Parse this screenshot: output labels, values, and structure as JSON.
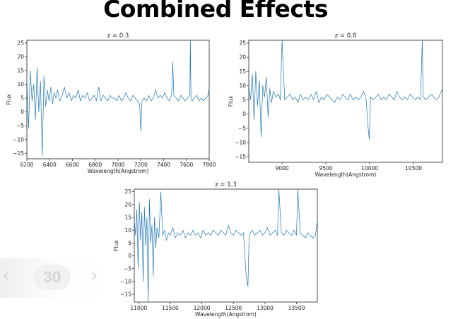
{
  "slide": {
    "title": "Combined Effects"
  },
  "pager": {
    "prev": "‹",
    "page": "30",
    "next": "›"
  },
  "colors": {
    "line": "#1f77b4"
  },
  "chart_data": [
    {
      "type": "line",
      "title": "z = 0.3",
      "xlabel": "Wavelength(Angstrom)",
      "ylabel": "Flux",
      "xlim": [
        6200,
        7800
      ],
      "ylim": [
        -17,
        26
      ],
      "xticks": [
        6200,
        6400,
        6600,
        6800,
        7000,
        7200,
        7400,
        7600,
        7800
      ],
      "xticklabels": [
        "6200",
        "6400",
        "6600",
        "6800",
        "7000",
        "7200",
        "7400",
        "7600",
        "7800"
      ],
      "yticks": [
        -15,
        -10,
        -5,
        0,
        5,
        10,
        15,
        20,
        25
      ],
      "yticklabels": [
        "−15",
        "−10",
        "−5",
        "0",
        "5",
        "10",
        "15",
        "20",
        "25"
      ],
      "x": [
        6200,
        6215,
        6230,
        6245,
        6260,
        6275,
        6290,
        6305,
        6320,
        6335,
        6350,
        6365,
        6380,
        6395,
        6410,
        6425,
        6440,
        6455,
        6470,
        6490,
        6510,
        6530,
        6550,
        6570,
        6590,
        6610,
        6630,
        6650,
        6670,
        6690,
        6710,
        6730,
        6750,
        6770,
        6790,
        6810,
        6830,
        6850,
        6870,
        6890,
        6910,
        6930,
        6950,
        6970,
        6990,
        7010,
        7030,
        7050,
        7070,
        7090,
        7110,
        7130,
        7150,
        7170,
        7190,
        7200,
        7210,
        7230,
        7250,
        7270,
        7290,
        7310,
        7330,
        7350,
        7370,
        7390,
        7410,
        7430,
        7450,
        7470,
        7480,
        7490,
        7510,
        7530,
        7550,
        7570,
        7590,
        7610,
        7630,
        7635,
        7640,
        7650,
        7670,
        7690,
        7710,
        7730,
        7750,
        7770,
        7790,
        7800
      ],
      "y": [
        12,
        -6,
        15,
        4,
        10,
        -3,
        16,
        0,
        11,
        -16,
        13,
        2,
        8,
        4,
        9,
        3,
        7,
        5,
        8,
        4,
        6,
        9,
        5,
        7,
        4,
        6,
        5,
        8,
        4,
        6,
        5,
        7,
        4,
        5,
        6,
        4,
        9,
        4,
        6,
        5,
        4,
        6,
        5,
        5,
        4,
        6,
        4,
        5,
        7,
        5,
        4,
        6,
        5,
        4,
        3,
        -7,
        4,
        5,
        4,
        6,
        4,
        5,
        8,
        5,
        6,
        5,
        7,
        5,
        4,
        6,
        18,
        6,
        5,
        4,
        6,
        5,
        4,
        5,
        6,
        26,
        5,
        4,
        5,
        6,
        4,
        5,
        4,
        5,
        6,
        9
      ]
    },
    {
      "type": "line",
      "title": "z = 0.8",
      "xlabel": "Wavelength(Angstrom)",
      "ylabel": "Flux",
      "xlim": [
        8620,
        10830
      ],
      "ylim": [
        -17,
        26
      ],
      "xticks": [
        9000,
        9500,
        10000,
        10500
      ],
      "xticklabels": [
        "9000",
        "9500",
        "10000",
        "10500"
      ],
      "yticks": [
        -15,
        -10,
        -5,
        0,
        5,
        10,
        15,
        20,
        25
      ],
      "yticklabels": [
        "−15",
        "−10",
        "−5",
        "0",
        "5",
        "10",
        "15",
        "20",
        "25"
      ],
      "x": [
        8620,
        8640,
        8660,
        8680,
        8700,
        8720,
        8740,
        8760,
        8780,
        8800,
        8820,
        8840,
        8860,
        8880,
        8900,
        8930,
        8960,
        8980,
        9000,
        9030,
        9060,
        9090,
        9120,
        9150,
        9180,
        9210,
        9240,
        9270,
        9300,
        9330,
        9360,
        9390,
        9420,
        9450,
        9480,
        9510,
        9540,
        9570,
        9600,
        9630,
        9660,
        9690,
        9720,
        9750,
        9780,
        9810,
        9840,
        9870,
        9900,
        9930,
        9960,
        9980,
        9995,
        10010,
        10040,
        10070,
        10100,
        10130,
        10160,
        10190,
        10220,
        10250,
        10280,
        10310,
        10340,
        10370,
        10400,
        10430,
        10460,
        10490,
        10520,
        10550,
        10580,
        10600,
        10610,
        10640,
        10670,
        10700,
        10730,
        10760,
        10790,
        10830
      ],
      "y": [
        10,
        5,
        14,
        -2,
        15,
        3,
        12,
        -8,
        10,
        6,
        13,
        -1,
        9,
        4,
        8,
        6,
        7,
        5,
        26,
        5,
        6,
        7,
        5,
        6,
        4,
        7,
        5,
        6,
        5,
        7,
        5,
        8,
        4,
        6,
        5,
        7,
        6,
        5,
        4,
        6,
        5,
        7,
        6,
        5,
        7,
        5,
        6,
        5,
        6,
        8,
        5,
        -4,
        -9,
        6,
        5,
        6,
        7,
        5,
        6,
        5,
        7,
        6,
        5,
        8,
        6,
        5,
        6,
        5,
        7,
        6,
        5,
        6,
        5,
        26,
        6,
        5,
        6,
        7,
        6,
        5,
        6,
        9
      ]
    },
    {
      "type": "line",
      "title": "z = 1.3",
      "xlabel": "Wavelength(Angstrom)",
      "ylabel": "Flux",
      "xlim": [
        10930,
        13830
      ],
      "ylim": [
        -18,
        26
      ],
      "xticks": [
        11000,
        11500,
        12000,
        12500,
        13000,
        13500
      ],
      "xticklabels": [
        "11000",
        "11500",
        "12000",
        "12500",
        "13000",
        "13500"
      ],
      "yticks": [
        -15,
        -10,
        -5,
        0,
        5,
        10,
        15,
        20,
        25
      ],
      "yticklabels": [
        "−15",
        "−10",
        "−5",
        "0",
        "5",
        "10",
        "15",
        "20",
        "25"
      ],
      "x": [
        10930,
        10950,
        10970,
        10990,
        11010,
        11030,
        11050,
        11070,
        11090,
        11110,
        11130,
        11150,
        11170,
        11190,
        11210,
        11230,
        11250,
        11270,
        11290,
        11320,
        11350,
        11380,
        11410,
        11440,
        11470,
        11500,
        11540,
        11580,
        11620,
        11660,
        11700,
        11740,
        11780,
        11820,
        11860,
        11900,
        11940,
        11980,
        12020,
        12060,
        12100,
        12140,
        12180,
        12220,
        12260,
        12300,
        12340,
        12380,
        12420,
        12460,
        12500,
        12540,
        12580,
        12620,
        12660,
        12700,
        12730,
        12750,
        12770,
        12800,
        12840,
        12880,
        12920,
        12960,
        13000,
        13040,
        13080,
        13120,
        13160,
        13200,
        13220,
        13260,
        13300,
        13340,
        13380,
        13420,
        13460,
        13500,
        13520,
        13560,
        13600,
        13640,
        13680,
        13720,
        13760,
        13800,
        13830
      ],
      "y": [
        14,
        8,
        18,
        -5,
        21,
        6,
        17,
        -10,
        19,
        4,
        15,
        -18,
        22,
        5,
        12,
        -8,
        15,
        3,
        11,
        7,
        25,
        8,
        10,
        6,
        9,
        8,
        11,
        7,
        9,
        8,
        10,
        7,
        9,
        8,
        10,
        8,
        9,
        7,
        10,
        8,
        9,
        8,
        10,
        9,
        8,
        10,
        9,
        8,
        12,
        9,
        8,
        10,
        9,
        8,
        9,
        -7,
        -12,
        8,
        9,
        10,
        8,
        9,
        10,
        8,
        9,
        11,
        8,
        9,
        10,
        8,
        26,
        9,
        8,
        10,
        9,
        8,
        10,
        8,
        26,
        9,
        8,
        7,
        9,
        8,
        7,
        8,
        14
      ]
    }
  ]
}
